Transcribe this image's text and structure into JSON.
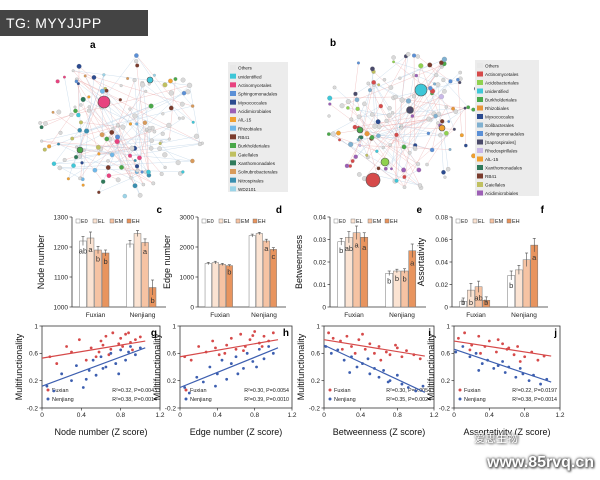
{
  "watermarks": {
    "tg": "TG: MYYJJPP",
    "site": "www.85rvq.cn",
    "cn": "爱思生物"
  },
  "colors": {
    "E0": "#ffffff",
    "EL": "#fbe3d2",
    "EM": "#f6c3a3",
    "EH": "#e8945e",
    "Fuxian": "#d64a4a",
    "Nenjiang": "#3d5fb0",
    "err": "#4a4a4a"
  },
  "networks": [
    {
      "letter": "a",
      "legend": [
        "Others",
        "unidentified",
        "Actinomycetales",
        "Sphingomonadales",
        "Myxococcales",
        "Acidimicrobiales",
        "AlL-15",
        "Rhizobiales",
        "RB41",
        "Burkholderiales",
        "Gaiellales",
        "Xanthomonadales",
        "Solirubrobacterales",
        "Nitrospirales",
        "WD2101"
      ],
      "legend_colors": [
        "#e8e8e8",
        "#3ec7d8",
        "#e8427f",
        "#5a8fd6",
        "#2b4a8f",
        "#9c5fb5",
        "#f0a030",
        "#6fb7e8",
        "#7a3b2c",
        "#4aa84a",
        "#c0c060",
        "#2f7a5a",
        "#d89a5a",
        "#3a8fb0",
        "#9bd4e8"
      ]
    },
    {
      "letter": "b",
      "legend": [
        "Others",
        "Actinomycetales",
        "Acidobacteriales",
        "unidentified",
        "Burkholderiales",
        "Rhizobiales",
        "Myxococcales",
        "Solibacterales",
        "Sphingomonadales",
        "[Saprospirales]",
        "Rhodospirillales",
        "AlL-15",
        "Xanthomonadales",
        "RB41",
        "Gaiellales",
        "Acidimicrobiales"
      ],
      "legend_colors": [
        "#e8e8e8",
        "#d64a4a",
        "#8fd14f",
        "#3ec7d8",
        "#4aa84a",
        "#e8963a",
        "#2b4a8f",
        "#7fb0d0",
        "#5a8fd6",
        "#4a4a6a",
        "#c9b8e8",
        "#f0a030",
        "#2f7a5a",
        "#7a3b2c",
        "#c0c060",
        "#9c5fb5"
      ]
    }
  ],
  "chart_data": [
    {
      "letter": "c",
      "type": "bar",
      "ylabel": "Node number",
      "categories": [
        "Fuxian",
        "Nenjiang"
      ],
      "series_names": [
        "E0",
        "EL",
        "EM",
        "EH"
      ],
      "ylim": [
        1000,
        1300
      ],
      "yticks": [
        1000,
        1100,
        1200,
        1300
      ],
      "values": [
        [
          1220,
          1230,
          1190,
          1180
        ],
        [
          1210,
          1245,
          1215,
          1065
        ]
      ],
      "errors": [
        [
          15,
          20,
          12,
          10
        ],
        [
          12,
          10,
          12,
          25
        ]
      ],
      "labels": [
        [
          "ab",
          "a",
          "b",
          "b"
        ],
        [
          "",
          "",
          "a",
          "b"
        ]
      ]
    },
    {
      "letter": "d",
      "type": "bar",
      "ylabel": "Edge number",
      "categories": [
        "Fuxian",
        "Nenjiang"
      ],
      "series_names": [
        "E0",
        "EL",
        "EM",
        "EH"
      ],
      "ylim": [
        0,
        3000
      ],
      "yticks": [
        0,
        1000,
        2000,
        3000
      ],
      "values": [
        [
          1450,
          1480,
          1420,
          1380
        ],
        [
          2380,
          2450,
          2200,
          1920
        ]
      ],
      "errors": [
        [
          40,
          45,
          35,
          30
        ],
        [
          50,
          40,
          60,
          60
        ]
      ],
      "labels": [
        [
          "",
          "",
          "",
          "b"
        ],
        [
          "",
          "",
          "a",
          "c"
        ]
      ]
    },
    {
      "letter": "e",
      "type": "bar",
      "ylabel": "Betweenness",
      "categories": [
        "Fuxian",
        "Nenjiang"
      ],
      "series_names": [
        "E0",
        "EL",
        "EM",
        "EH"
      ],
      "ylim": [
        0,
        0.04
      ],
      "yticks": [
        0,
        0.01,
        0.02,
        0.03,
        0.04
      ],
      "values": [
        [
          0.029,
          0.031,
          0.033,
          0.031
        ],
        [
          0.015,
          0.016,
          0.016,
          0.025
        ]
      ],
      "errors": [
        [
          0.0015,
          0.0025,
          0.003,
          0.002
        ],
        [
          0.001,
          0.0008,
          0.001,
          0.003
        ]
      ],
      "labels": [
        [
          "b",
          "ab",
          "a",
          "a"
        ],
        [
          "b",
          "b",
          "b",
          "a"
        ]
      ]
    },
    {
      "letter": "f",
      "type": "bar",
      "ylabel": "Assortativity",
      "categories": [
        "Fuxian",
        "Nenjiang"
      ],
      "series_names": [
        "E0",
        "EL",
        "EM",
        "EH"
      ],
      "ylim": [
        0,
        0.08
      ],
      "yticks": [
        0,
        0.02,
        0.04,
        0.06,
        0.08
      ],
      "values": [
        [
          0.005,
          0.015,
          0.018,
          0.006
        ],
        [
          0.028,
          0.033,
          0.042,
          0.055
        ]
      ],
      "errors": [
        [
          0.003,
          0.006,
          0.005,
          0.003
        ],
        [
          0.004,
          0.004,
          0.006,
          0.006
        ]
      ],
      "labels": [
        [
          "b",
          "b",
          "ab",
          "b"
        ],
        [
          "b",
          "",
          "",
          "a"
        ]
      ]
    },
    {
      "letter": "g",
      "type": "scatter",
      "ylabel": "Multifunctionality",
      "xlabel": "Node number (Z score)",
      "xlim": [
        0,
        1.2
      ],
      "xticks": [
        0,
        0.4,
        0.8,
        1.2
      ],
      "ylim": [
        -0.2,
        1.0
      ],
      "yticks": [
        -0.2,
        0.2,
        0.6,
        1.0
      ],
      "series": [
        {
          "name": "Fuxian",
          "color": "#d64a4a",
          "x": [
            0.08,
            0.15,
            0.25,
            0.3,
            0.38,
            0.45,
            0.5,
            0.55,
            0.6,
            0.62,
            0.65,
            0.7,
            0.72,
            0.78,
            0.8,
            0.82,
            0.85,
            0.9,
            0.92,
            0.95,
            1.0,
            0.58,
            0.68,
            0.88
          ],
          "y": [
            0.55,
            0.45,
            0.7,
            0.62,
            0.8,
            0.5,
            0.68,
            0.55,
            0.78,
            0.72,
            0.85,
            0.66,
            0.9,
            0.74,
            0.82,
            0.7,
            0.88,
            0.76,
            0.65,
            0.8,
            0.84,
            0.62,
            0.58,
            0.9
          ],
          "line": [
            0.0,
            0.53,
            1.05,
            0.78
          ]
        },
        {
          "name": "Nenjiang",
          "color": "#3d5fb0",
          "x": [
            0.05,
            0.12,
            0.2,
            0.3,
            0.35,
            0.42,
            0.48,
            0.52,
            0.55,
            0.6,
            0.65,
            0.7,
            0.75,
            0.8,
            0.85,
            0.9,
            0.95,
            1.0,
            0.45,
            0.62,
            0.78,
            0.88
          ],
          "y": [
            0.12,
            0.05,
            0.3,
            0.2,
            0.42,
            0.1,
            0.35,
            0.5,
            0.28,
            0.55,
            0.4,
            0.6,
            0.45,
            0.65,
            0.5,
            0.7,
            0.58,
            0.68,
            0.22,
            0.38,
            0.3,
            0.62
          ],
          "line": [
            0.0,
            0.12,
            1.05,
            0.68
          ]
        }
      ],
      "stats": [
        "R²=0.32, P=0.0043",
        "R²=0.38, P=0.0014"
      ]
    },
    {
      "letter": "h",
      "type": "scatter",
      "ylabel": "Multifunctionality",
      "xlabel": "Edge number (Z score)",
      "xlim": [
        0,
        1.2
      ],
      "xticks": [
        0,
        0.4,
        0.8,
        1.2
      ],
      "ylim": [
        -0.2,
        1.0
      ],
      "yticks": [
        -0.2,
        0.2,
        0.6,
        1.0
      ],
      "series": [
        {
          "name": "Fuxian",
          "color": "#d64a4a",
          "x": [
            0.05,
            0.12,
            0.2,
            0.28,
            0.35,
            0.42,
            0.5,
            0.55,
            0.6,
            0.65,
            0.7,
            0.75,
            0.8,
            0.85,
            0.9,
            0.95,
            1.0,
            0.48,
            0.68,
            0.88,
            0.38,
            0.78
          ],
          "y": [
            0.55,
            0.5,
            0.7,
            0.62,
            0.78,
            0.58,
            0.72,
            0.82,
            0.66,
            0.88,
            0.7,
            0.8,
            0.92,
            0.75,
            0.85,
            0.78,
            0.9,
            0.6,
            0.64,
            0.7,
            0.68,
            0.86
          ],
          "line": [
            0.0,
            0.55,
            1.05,
            0.8
          ]
        },
        {
          "name": "Nenjiang",
          "color": "#3d5fb0",
          "x": [
            0.05,
            0.1,
            0.18,
            0.25,
            0.32,
            0.4,
            0.45,
            0.5,
            0.55,
            0.6,
            0.68,
            0.72,
            0.78,
            0.85,
            0.9,
            0.95,
            1.0,
            0.38,
            0.62,
            0.82
          ],
          "y": [
            0.1,
            0.02,
            0.25,
            0.18,
            0.4,
            0.3,
            0.5,
            0.22,
            0.45,
            0.55,
            0.38,
            0.6,
            0.48,
            0.66,
            0.52,
            0.7,
            0.6,
            0.12,
            0.3,
            0.4
          ],
          "line": [
            0.0,
            0.1,
            1.05,
            0.68
          ]
        }
      ],
      "stats": [
        "R²=0.30, P=0.0054",
        "R²=0.39, P=0.0010"
      ]
    },
    {
      "letter": "i",
      "type": "scatter",
      "ylabel": "Multifunctionality",
      "xlabel": "Betweenness (Z score)",
      "xlim": [
        0,
        1.2
      ],
      "xticks": [
        0,
        0.4,
        0.8,
        1.2
      ],
      "ylim": [
        -0.2,
        1.0
      ],
      "yticks": [
        -0.2,
        0.2,
        0.6,
        1.0
      ],
      "series": [
        {
          "name": "Fuxian",
          "color": "#d64a4a",
          "x": [
            0.05,
            0.1,
            0.18,
            0.25,
            0.3,
            0.38,
            0.45,
            0.5,
            0.55,
            0.6,
            0.68,
            0.72,
            0.8,
            0.85,
            0.9,
            0.98,
            1.05,
            0.42,
            0.62,
            0.78,
            0.2,
            0.34
          ],
          "y": [
            0.9,
            0.82,
            0.78,
            0.85,
            0.7,
            0.8,
            0.66,
            0.74,
            0.6,
            0.7,
            0.62,
            0.58,
            0.68,
            0.55,
            0.64,
            0.58,
            0.52,
            0.88,
            0.5,
            0.72,
            0.66,
            0.6
          ],
          "line": [
            0.0,
            0.8,
            1.1,
            0.56
          ]
        },
        {
          "name": "Nenjiang",
          "color": "#3d5fb0",
          "x": [
            0.02,
            0.08,
            0.15,
            0.22,
            0.3,
            0.36,
            0.42,
            0.5,
            0.55,
            0.6,
            0.65,
            0.72,
            0.8,
            0.85,
            0.92,
            1.0,
            1.08,
            0.28,
            0.48,
            0.7
          ],
          "y": [
            0.7,
            0.6,
            0.65,
            0.5,
            0.55,
            0.4,
            0.45,
            0.3,
            0.38,
            0.25,
            0.35,
            0.2,
            0.28,
            0.15,
            0.1,
            0.05,
            0.12,
            0.32,
            0.52,
            0.18
          ],
          "line": [
            0.0,
            0.72,
            1.1,
            0.03
          ]
        }
      ],
      "stats": [
        "R²=0.30, P=0.0054",
        "R²=0.35, P=0.0024"
      ]
    },
    {
      "letter": "j",
      "type": "scatter",
      "ylabel": "Multifunctionality",
      "xlabel": "Assortativity (Z score)",
      "xlim": [
        0,
        1.2
      ],
      "xticks": [
        0,
        0.4,
        0.8,
        1.2
      ],
      "ylim": [
        -0.2,
        1.0
      ],
      "yticks": [
        -0.2,
        0.2,
        0.6,
        1.0
      ],
      "series": [
        {
          "name": "Fuxian",
          "color": "#d64a4a",
          "x": [
            0.05,
            0.12,
            0.2,
            0.28,
            0.35,
            0.4,
            0.48,
            0.55,
            0.6,
            0.68,
            0.72,
            0.8,
            0.88,
            0.95,
            1.02,
            0.3,
            0.5,
            0.75,
            0.18,
            0.62
          ],
          "y": [
            0.82,
            0.9,
            0.72,
            0.85,
            0.7,
            0.78,
            0.62,
            0.74,
            0.66,
            0.58,
            0.7,
            0.55,
            0.62,
            0.5,
            0.56,
            0.6,
            0.8,
            0.48,
            0.65,
            0.68
          ],
          "line": [
            0.0,
            0.78,
            1.1,
            0.56
          ]
        },
        {
          "name": "Nenjiang",
          "color": "#3d5fb0",
          "x": [
            0.02,
            0.1,
            0.18,
            0.25,
            0.32,
            0.38,
            0.45,
            0.5,
            0.58,
            0.62,
            0.7,
            0.78,
            0.85,
            0.9,
            0.98,
            1.05,
            0.28,
            0.55,
            0.75
          ],
          "y": [
            0.62,
            0.7,
            0.55,
            0.6,
            0.45,
            0.5,
            0.38,
            0.42,
            0.32,
            0.4,
            0.25,
            0.3,
            0.2,
            0.28,
            0.15,
            0.22,
            0.35,
            0.48,
            0.38
          ],
          "line": [
            0.0,
            0.66,
            1.1,
            0.18
          ]
        }
      ],
      "stats": [
        "R²=0.22, P=0.0197",
        "R²=0.38, P=0.0014"
      ]
    }
  ]
}
